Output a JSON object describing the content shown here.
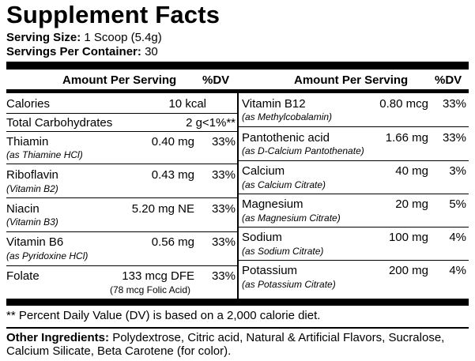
{
  "title": "Supplement Facts",
  "serving_size": {
    "label": "Serving Size:",
    "value": "1 Scoop (5.4g)"
  },
  "servings_per_container": {
    "label": "Servings Per Container:",
    "value": "30"
  },
  "header": {
    "amount": "Amount Per Serving",
    "dv": "%DV"
  },
  "left_rows": [
    {
      "name": "Calories",
      "sub": "",
      "amount": "10 kcal",
      "dv": ""
    },
    {
      "name": "Total Carbohydrates",
      "sub": "",
      "amount": "2 g",
      "dv": "<1%**"
    },
    {
      "name": "Thiamin",
      "sub": "(as Thiamine HCl)",
      "amount": "0.40 mg",
      "dv": "33%"
    },
    {
      "name": "Riboflavin",
      "sub": "(Vitamin B2)",
      "amount": "0.43 mg",
      "dv": "33%"
    },
    {
      "name": "Niacin",
      "sub": "(Vitamin B3)",
      "amount": "5.20 mg NE",
      "dv": "33%"
    },
    {
      "name": "Vitamin B6",
      "sub": "(as Pyridoxine HCl)",
      "amount": "0.56 mg",
      "dv": "33%"
    },
    {
      "name": "Folate",
      "sub": "(78 mcg Folic Acid)",
      "amount": "133 mcg DFE",
      "dv": "33%"
    }
  ],
  "right_rows": [
    {
      "name": "Vitamin B12",
      "sub": "(as Methylcobalamin)",
      "amount": "0.80 mcg",
      "dv": "33%"
    },
    {
      "name": "Pantothenic acid",
      "sub": "(as D-Calcium Pantothenate)",
      "amount": "1.66 mg",
      "dv": "33%"
    },
    {
      "name": "Calcium",
      "sub": "(as Calcium Citrate)",
      "amount": "40 mg",
      "dv": "3%"
    },
    {
      "name": "Magnesium",
      "sub": "(as Magnesium Citrate)",
      "amount": "20 mg",
      "dv": "5%"
    },
    {
      "name": "Sodium",
      "sub": "(as Sodium Citrate)",
      "amount": "100 mg",
      "dv": "4%"
    },
    {
      "name": "Potassium",
      "sub": "(as Potassium Citrate)",
      "amount": "200 mg",
      "dv": "4%"
    }
  ],
  "footnote": "** Percent Daily Value (DV) is based on a 2,000 calorie diet.",
  "other_ingredients": {
    "label": "Other Ingredients:",
    "text": "Polydextrose, Citric acid, Natural & Artificial Flavors, Sucralose, Calcium Silicate, Beta Carotene (for color)."
  }
}
